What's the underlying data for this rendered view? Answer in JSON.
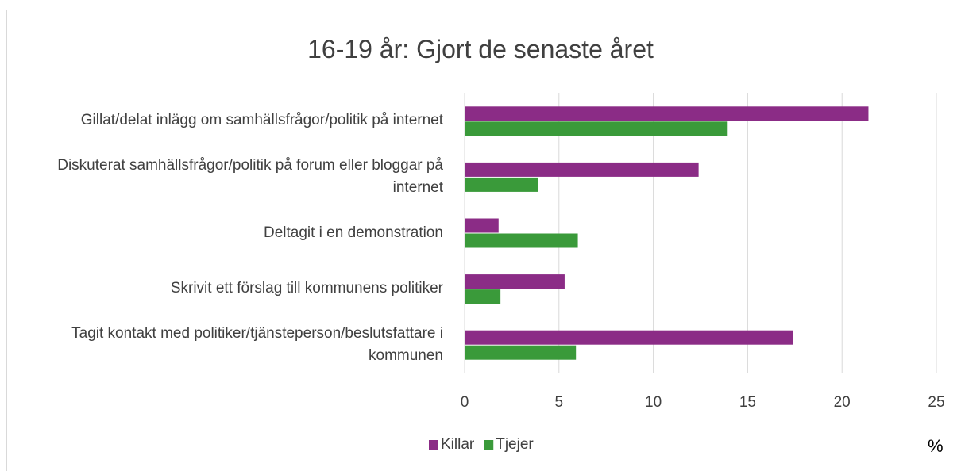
{
  "chart_data": {
    "type": "hbar",
    "title": "16-19 år: Gjort de senaste året",
    "categories": [
      "Gillat/delat inlägg om samhällsfrågor/politik på internet",
      "Diskuterat samhällsfrågor/politik på forum eller bloggar på internet",
      "Deltagit i en demonstration",
      "Skrivit ett förslag till kommunens politiker",
      "Tagit kontakt med politiker/tjänsteperson/beslutsfattare i kommunen"
    ],
    "series": [
      {
        "name": "Killar",
        "color": "#8b2c86",
        "values": [
          21.4,
          12.4,
          1.8,
          5.3,
          17.4
        ]
      },
      {
        "name": "Tjejer",
        "color": "#3a9a3a",
        "values": [
          13.9,
          3.9,
          6.0,
          1.9,
          5.9
        ]
      }
    ],
    "xlim": [
      0,
      25
    ],
    "xticks": [
      0,
      5,
      10,
      15,
      20,
      25
    ],
    "xlabel": "%",
    "grid": true
  }
}
